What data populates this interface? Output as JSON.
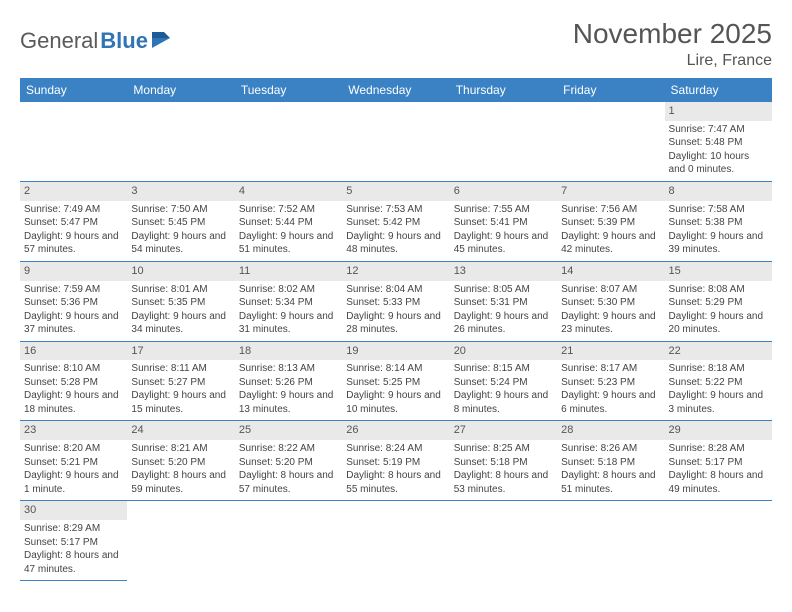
{
  "brand": {
    "general": "General",
    "blue": "Blue"
  },
  "title": "November 2025",
  "location": "Lire, France",
  "colors": {
    "header_bg": "#3b82c4",
    "header_fg": "#ffffff",
    "daynum_bg": "#e9e9e9",
    "rule": "#3b82c4",
    "text": "#444444",
    "title": "#555555"
  },
  "dayHeaders": [
    "Sunday",
    "Monday",
    "Tuesday",
    "Wednesday",
    "Thursday",
    "Friday",
    "Saturday"
  ],
  "weeks": [
    [
      null,
      null,
      null,
      null,
      null,
      null,
      {
        "n": "1",
        "sr": "Sunrise: 7:47 AM",
        "ss": "Sunset: 5:48 PM",
        "dl": "Daylight: 10 hours and 0 minutes."
      }
    ],
    [
      {
        "n": "2",
        "sr": "Sunrise: 7:49 AM",
        "ss": "Sunset: 5:47 PM",
        "dl": "Daylight: 9 hours and 57 minutes."
      },
      {
        "n": "3",
        "sr": "Sunrise: 7:50 AM",
        "ss": "Sunset: 5:45 PM",
        "dl": "Daylight: 9 hours and 54 minutes."
      },
      {
        "n": "4",
        "sr": "Sunrise: 7:52 AM",
        "ss": "Sunset: 5:44 PM",
        "dl": "Daylight: 9 hours and 51 minutes."
      },
      {
        "n": "5",
        "sr": "Sunrise: 7:53 AM",
        "ss": "Sunset: 5:42 PM",
        "dl": "Daylight: 9 hours and 48 minutes."
      },
      {
        "n": "6",
        "sr": "Sunrise: 7:55 AM",
        "ss": "Sunset: 5:41 PM",
        "dl": "Daylight: 9 hours and 45 minutes."
      },
      {
        "n": "7",
        "sr": "Sunrise: 7:56 AM",
        "ss": "Sunset: 5:39 PM",
        "dl": "Daylight: 9 hours and 42 minutes."
      },
      {
        "n": "8",
        "sr": "Sunrise: 7:58 AM",
        "ss": "Sunset: 5:38 PM",
        "dl": "Daylight: 9 hours and 39 minutes."
      }
    ],
    [
      {
        "n": "9",
        "sr": "Sunrise: 7:59 AM",
        "ss": "Sunset: 5:36 PM",
        "dl": "Daylight: 9 hours and 37 minutes."
      },
      {
        "n": "10",
        "sr": "Sunrise: 8:01 AM",
        "ss": "Sunset: 5:35 PM",
        "dl": "Daylight: 9 hours and 34 minutes."
      },
      {
        "n": "11",
        "sr": "Sunrise: 8:02 AM",
        "ss": "Sunset: 5:34 PM",
        "dl": "Daylight: 9 hours and 31 minutes."
      },
      {
        "n": "12",
        "sr": "Sunrise: 8:04 AM",
        "ss": "Sunset: 5:33 PM",
        "dl": "Daylight: 9 hours and 28 minutes."
      },
      {
        "n": "13",
        "sr": "Sunrise: 8:05 AM",
        "ss": "Sunset: 5:31 PM",
        "dl": "Daylight: 9 hours and 26 minutes."
      },
      {
        "n": "14",
        "sr": "Sunrise: 8:07 AM",
        "ss": "Sunset: 5:30 PM",
        "dl": "Daylight: 9 hours and 23 minutes."
      },
      {
        "n": "15",
        "sr": "Sunrise: 8:08 AM",
        "ss": "Sunset: 5:29 PM",
        "dl": "Daylight: 9 hours and 20 minutes."
      }
    ],
    [
      {
        "n": "16",
        "sr": "Sunrise: 8:10 AM",
        "ss": "Sunset: 5:28 PM",
        "dl": "Daylight: 9 hours and 18 minutes."
      },
      {
        "n": "17",
        "sr": "Sunrise: 8:11 AM",
        "ss": "Sunset: 5:27 PM",
        "dl": "Daylight: 9 hours and 15 minutes."
      },
      {
        "n": "18",
        "sr": "Sunrise: 8:13 AM",
        "ss": "Sunset: 5:26 PM",
        "dl": "Daylight: 9 hours and 13 minutes."
      },
      {
        "n": "19",
        "sr": "Sunrise: 8:14 AM",
        "ss": "Sunset: 5:25 PM",
        "dl": "Daylight: 9 hours and 10 minutes."
      },
      {
        "n": "20",
        "sr": "Sunrise: 8:15 AM",
        "ss": "Sunset: 5:24 PM",
        "dl": "Daylight: 9 hours and 8 minutes."
      },
      {
        "n": "21",
        "sr": "Sunrise: 8:17 AM",
        "ss": "Sunset: 5:23 PM",
        "dl": "Daylight: 9 hours and 6 minutes."
      },
      {
        "n": "22",
        "sr": "Sunrise: 8:18 AM",
        "ss": "Sunset: 5:22 PM",
        "dl": "Daylight: 9 hours and 3 minutes."
      }
    ],
    [
      {
        "n": "23",
        "sr": "Sunrise: 8:20 AM",
        "ss": "Sunset: 5:21 PM",
        "dl": "Daylight: 9 hours and 1 minute."
      },
      {
        "n": "24",
        "sr": "Sunrise: 8:21 AM",
        "ss": "Sunset: 5:20 PM",
        "dl": "Daylight: 8 hours and 59 minutes."
      },
      {
        "n": "25",
        "sr": "Sunrise: 8:22 AM",
        "ss": "Sunset: 5:20 PM",
        "dl": "Daylight: 8 hours and 57 minutes."
      },
      {
        "n": "26",
        "sr": "Sunrise: 8:24 AM",
        "ss": "Sunset: 5:19 PM",
        "dl": "Daylight: 8 hours and 55 minutes."
      },
      {
        "n": "27",
        "sr": "Sunrise: 8:25 AM",
        "ss": "Sunset: 5:18 PM",
        "dl": "Daylight: 8 hours and 53 minutes."
      },
      {
        "n": "28",
        "sr": "Sunrise: 8:26 AM",
        "ss": "Sunset: 5:18 PM",
        "dl": "Daylight: 8 hours and 51 minutes."
      },
      {
        "n": "29",
        "sr": "Sunrise: 8:28 AM",
        "ss": "Sunset: 5:17 PM",
        "dl": "Daylight: 8 hours and 49 minutes."
      }
    ],
    [
      {
        "n": "30",
        "sr": "Sunrise: 8:29 AM",
        "ss": "Sunset: 5:17 PM",
        "dl": "Daylight: 8 hours and 47 minutes."
      },
      null,
      null,
      null,
      null,
      null,
      null
    ]
  ]
}
